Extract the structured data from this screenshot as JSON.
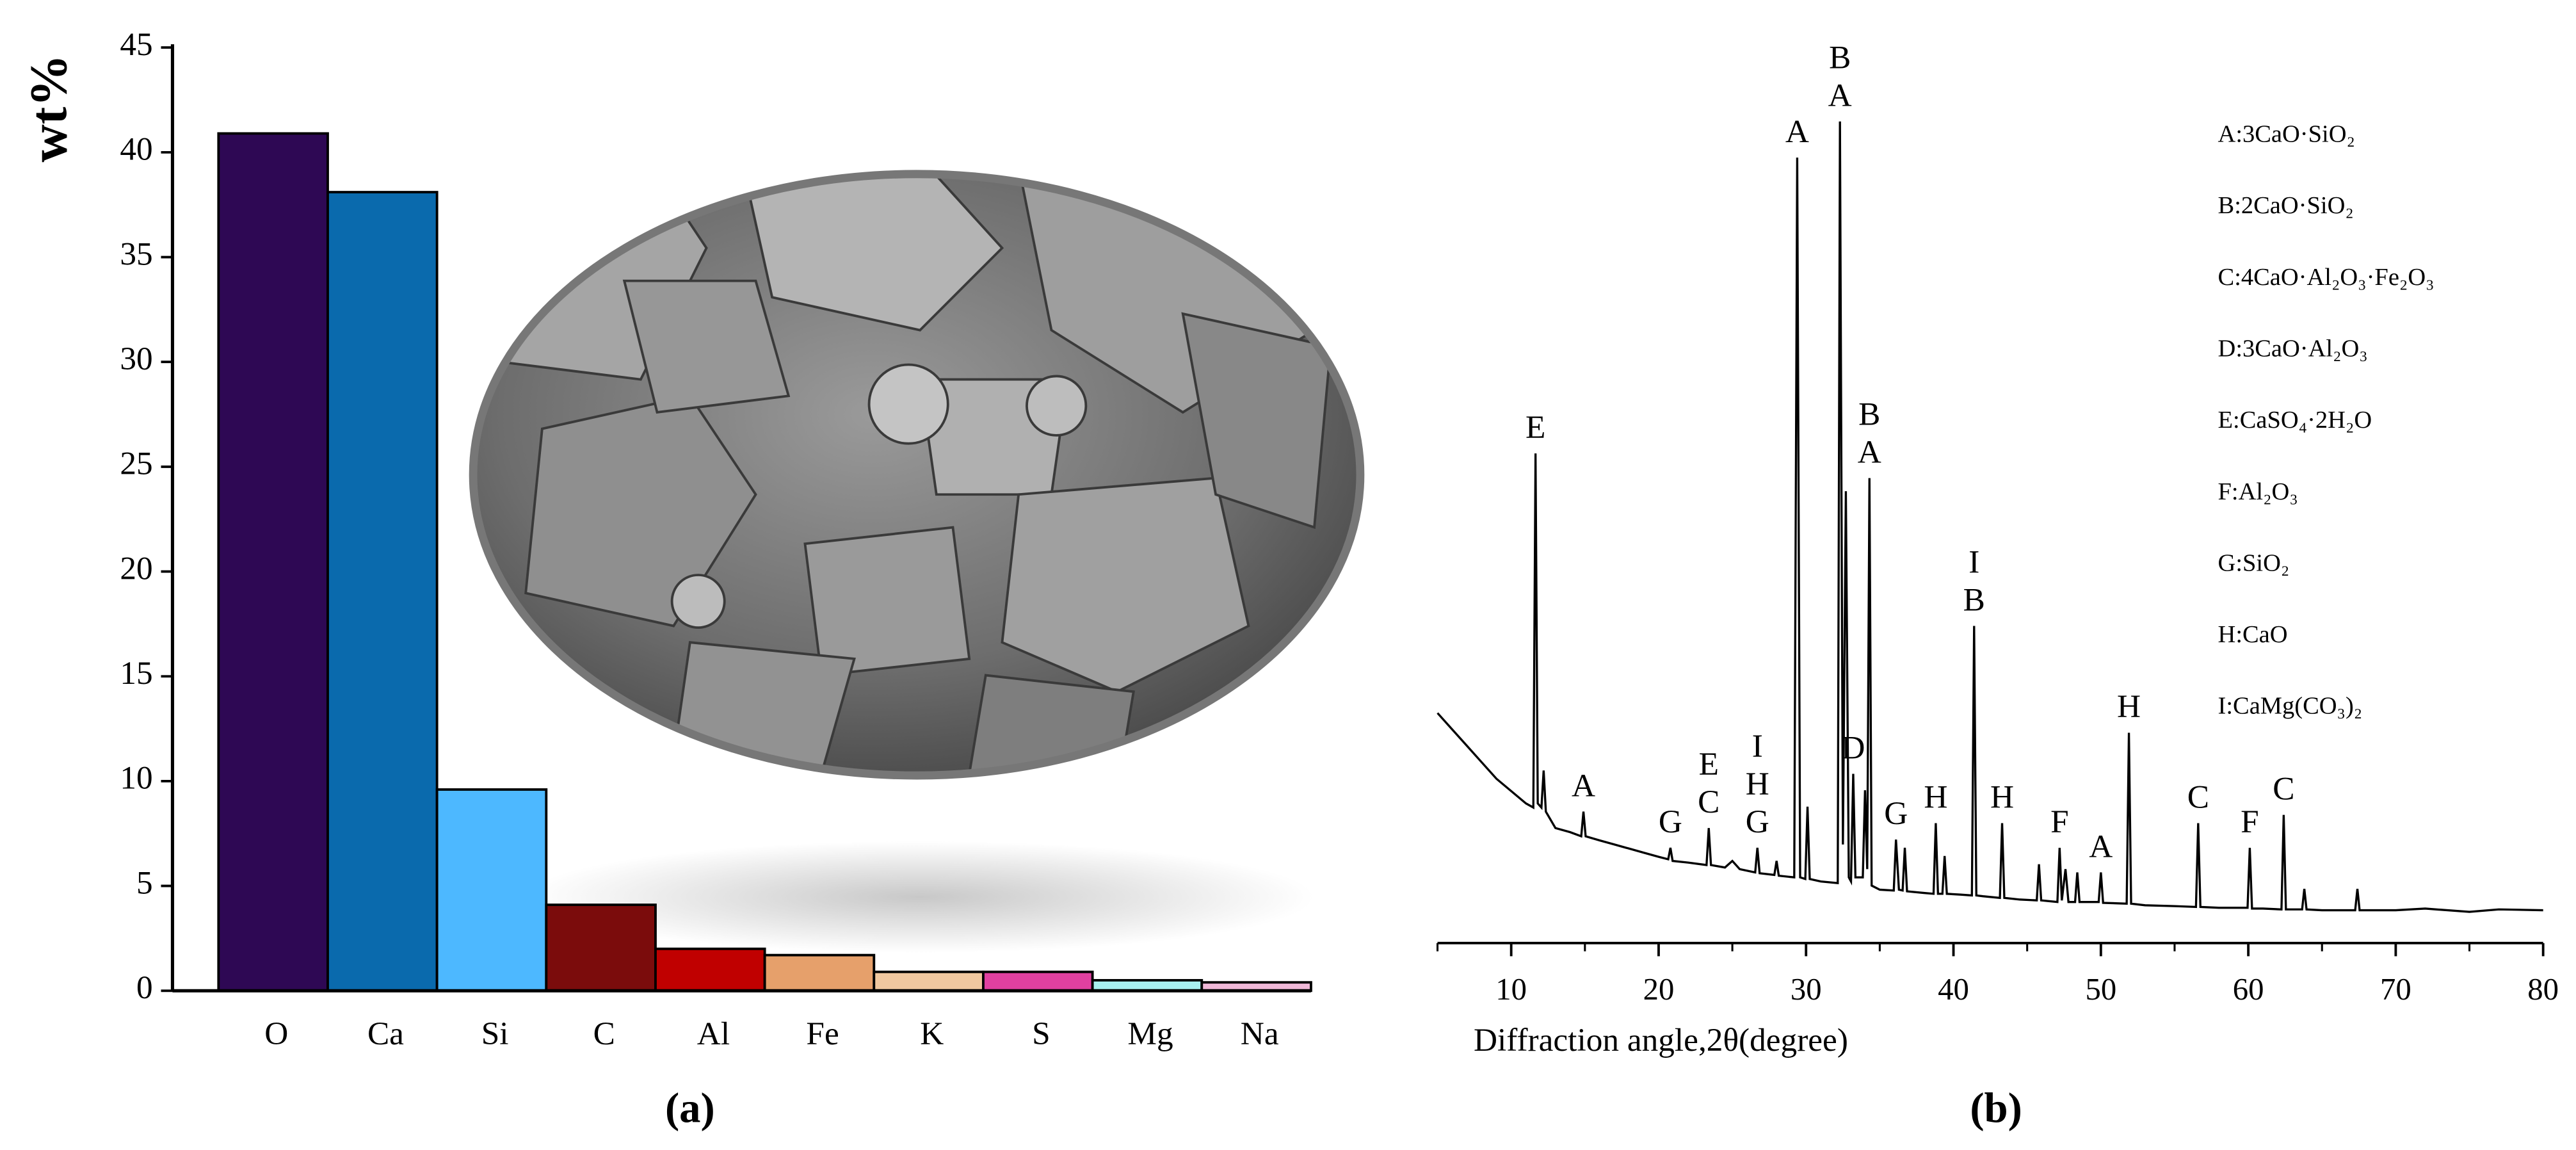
{
  "chart_data": [
    {
      "type": "bar",
      "y_label": "wt%",
      "panel_label": "(a)",
      "categories": [
        "O",
        "Ca",
        "Si",
        "C",
        "Al",
        "Fe",
        "K",
        "S",
        "Mg",
        "Na"
      ],
      "values": [
        40.9,
        38.1,
        9.6,
        4.1,
        2.0,
        1.7,
        0.9,
        0.9,
        0.5,
        0.4
      ],
      "colors": [
        "#2e0854",
        "#0a6aad",
        "#4db8ff",
        "#7b0c0c",
        "#c00000",
        "#e6a06b",
        "#f0c8a0",
        "#e040a0",
        "#a8f0f0",
        "#f0b8d8"
      ],
      "ylim": [
        0,
        45
      ],
      "yticks": [
        0,
        5,
        10,
        15,
        20,
        25,
        30,
        35,
        40,
        45
      ]
    },
    {
      "type": "line",
      "panel_label": "(b)",
      "x_label": "Diffraction angle,2θ(degree)",
      "xlim": [
        5,
        80
      ],
      "xticks": [
        10,
        20,
        30,
        40,
        50,
        60,
        70,
        80
      ],
      "minor_xticks": [
        5,
        15,
        25,
        35,
        45,
        55,
        65,
        75
      ],
      "ylim": [
        0,
        100
      ],
      "x": [
        5,
        6,
        7,
        8,
        9,
        10,
        11,
        11.5,
        11.65,
        11.8,
        12.05,
        12.2,
        12.35,
        13,
        14,
        14.75,
        14.9,
        15.05,
        16,
        17,
        18,
        19,
        20,
        20.65,
        20.8,
        20.95,
        22,
        23.25,
        23.4,
        23.55,
        24.5,
        25,
        25.5,
        26.55,
        26.7,
        26.85,
        27.85,
        28,
        28.15,
        29.2,
        29.4,
        29.6,
        29.95,
        30.1,
        30.25,
        31,
        32.15,
        32.3,
        32.5,
        32.7,
        32.9,
        33.05,
        33.2,
        33.35,
        33.85,
        34,
        34.15,
        34.3,
        34.45,
        35,
        35.95,
        36.1,
        36.3,
        36.55,
        36.7,
        36.85,
        38,
        38.65,
        38.8,
        38.95,
        39.25,
        39.4,
        39.55,
        40.5,
        41.25,
        41.4,
        41.55,
        42,
        43.15,
        43.3,
        43.45,
        44.5,
        45.65,
        45.8,
        45.95,
        47.05,
        47.2,
        47.35,
        47.6,
        47.8,
        48.25,
        48.4,
        48.55,
        49.85,
        50,
        50.15,
        51.75,
        51.9,
        52.05,
        53,
        55,
        56.45,
        56.6,
        56.75,
        58,
        59.95,
        60.1,
        60.25,
        61,
        62.25,
        62.4,
        62.55,
        63.65,
        63.8,
        63.95,
        65,
        67.25,
        67.4,
        67.55,
        70,
        72,
        75,
        77,
        80
      ],
      "series": [
        {
          "color": "#000000",
          "values": [
            28,
            26,
            24,
            22,
            20,
            18.5,
            17,
            16.5,
            59.6,
            17,
            16.5,
            21,
            16,
            14,
            13.5,
            13,
            16,
            13,
            12.5,
            12,
            11.5,
            11,
            10.5,
            10.2,
            11.6,
            10,
            9.8,
            9.5,
            14,
            9.5,
            9.2,
            10,
            9,
            8.6,
            11.6,
            8.5,
            8.3,
            10,
            8.2,
            8,
            95.6,
            8,
            7.8,
            16.6,
            7.8,
            7.5,
            7.3,
            100,
            12,
            55,
            8,
            7.5,
            20.6,
            8,
            8,
            18.6,
            9,
            56.6,
            7,
            6.5,
            6.4,
            12.6,
            6.5,
            6.4,
            11.6,
            6.3,
            6.1,
            6,
            14.6,
            6,
            6,
            10.6,
            6,
            5.9,
            5.8,
            38.6,
            5.8,
            5.7,
            5.5,
            14.6,
            5.5,
            5.3,
            5.2,
            9.6,
            5.2,
            5,
            11.6,
            5.2,
            9,
            5,
            5,
            8.6,
            5,
            5,
            8.6,
            4.9,
            4.8,
            25.6,
            4.8,
            4.6,
            4.5,
            4.4,
            14.6,
            4.4,
            4.3,
            4.3,
            11.6,
            4.2,
            4.2,
            4.1,
            15.6,
            4.1,
            4.1,
            6.6,
            4.1,
            4,
            4,
            6.6,
            4,
            4,
            4.2,
            3.8,
            4.1,
            4
          ]
        }
      ],
      "peak_labels": [
        {
          "x": 11.65,
          "labels": [
            "E"
          ]
        },
        {
          "x": 14.9,
          "labels": [
            "A"
          ]
        },
        {
          "x": 20.8,
          "labels": [
            "G"
          ]
        },
        {
          "x": 23.4,
          "labels": [
            "E",
            "C"
          ]
        },
        {
          "x": 26.7,
          "labels": [
            "I",
            "H",
            "G"
          ]
        },
        {
          "x": 29.4,
          "labels": [
            "A"
          ]
        },
        {
          "x": 32.3,
          "labels": [
            "B",
            "A"
          ]
        },
        {
          "x": 33.2,
          "labels": [
            "D"
          ]
        },
        {
          "x": 34.3,
          "labels": [
            "B",
            "A"
          ]
        },
        {
          "x": 36.1,
          "labels": [
            "G"
          ]
        },
        {
          "x": 38.8,
          "labels": [
            "H"
          ]
        },
        {
          "x": 41.4,
          "labels": [
            "I",
            "B"
          ]
        },
        {
          "x": 43.3,
          "labels": [
            "H"
          ]
        },
        {
          "x": 47.2,
          "labels": [
            "F"
          ]
        },
        {
          "x": 50,
          "labels": [
            "A"
          ]
        },
        {
          "x": 51.9,
          "labels": [
            "H"
          ]
        },
        {
          "x": 56.6,
          "labels": [
            "C"
          ]
        },
        {
          "x": 60.1,
          "labels": [
            "F"
          ]
        },
        {
          "x": 62.4,
          "labels": [
            "C"
          ]
        }
      ],
      "legend": [
        "A:3CaO·SiO₂",
        "B:2CaO·SiO₂",
        "C:4CaO·Al₂O₃·Fe₂O₃",
        "D:3CaO·Al₂O₃",
        "E:CaSO₄·2H₂O",
        "F:Al₂O₃",
        "G:SiO₂",
        "H:CaO",
        "I:CaMg(CO₃)₂"
      ]
    }
  ]
}
